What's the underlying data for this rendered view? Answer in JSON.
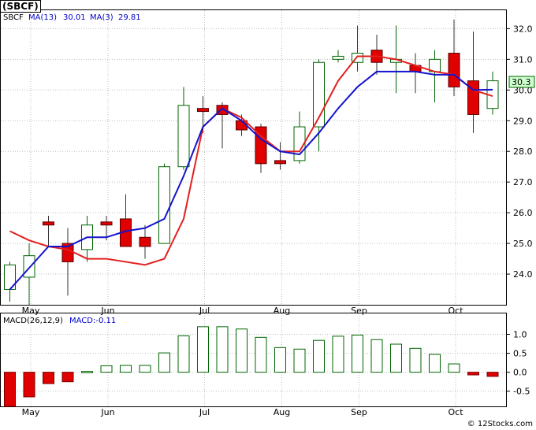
{
  "ticker_badge": "(SBCF)",
  "copyright": "© 12Stocks.com",
  "colors": {
    "up_candle_fill": "#ffffff",
    "up_candle_edge": "#006400",
    "down_candle_fill": "#e00000",
    "ma_fast": "#e32020",
    "ma_slow": "#1414cc",
    "macd_bar_up": "#006400",
    "macd_bar_down": "#e00000",
    "grid": "#bfbfbf",
    "legend_text": "#0000cc"
  },
  "chart_data": [
    {
      "type": "candlestick",
      "legend": {
        "symbol": "SBCF",
        "ma_slow_label": "MA(13)",
        "ma_slow_value": "30.01",
        "ma_fast_label": "MA(3)",
        "ma_fast_value": "29.81"
      },
      "last_price_label": "30.3",
      "ylim": [
        23,
        32.6
      ],
      "yticks": [
        "24.0",
        "25.0",
        "26.0",
        "27.0",
        "28.0",
        "29.0",
        "30.0",
        "31.0",
        "32.0"
      ],
      "xticks": [
        "May",
        "Jun",
        "Jul",
        "Aug",
        "Sep",
        "Oct"
      ],
      "grid": true,
      "candles": [
        {
          "o": 23.5,
          "h": 24.4,
          "l": 23.1,
          "c": 24.3
        },
        {
          "o": 23.9,
          "h": 25.0,
          "l": 23.0,
          "c": 24.6
        },
        {
          "o": 25.7,
          "h": 25.9,
          "l": 24.9,
          "c": 25.6
        },
        {
          "o": 25.0,
          "h": 25.5,
          "l": 23.3,
          "c": 24.4
        },
        {
          "o": 24.8,
          "h": 25.9,
          "l": 24.4,
          "c": 25.6
        },
        {
          "o": 25.7,
          "h": 25.9,
          "l": 25.1,
          "c": 25.6
        },
        {
          "o": 25.8,
          "h": 26.6,
          "l": 24.9,
          "c": 24.9
        },
        {
          "o": 25.2,
          "h": 25.6,
          "l": 24.5,
          "c": 24.9
        },
        {
          "o": 25.0,
          "h": 27.6,
          "l": 25.0,
          "c": 27.5
        },
        {
          "o": 27.5,
          "h": 30.1,
          "l": 27.4,
          "c": 29.5
        },
        {
          "o": 29.4,
          "h": 29.8,
          "l": 28.6,
          "c": 29.3
        },
        {
          "o": 29.5,
          "h": 29.6,
          "l": 28.1,
          "c": 29.2
        },
        {
          "o": 29.0,
          "h": 29.2,
          "l": 28.5,
          "c": 28.7
        },
        {
          "o": 28.8,
          "h": 28.9,
          "l": 27.3,
          "c": 27.6
        },
        {
          "o": 27.7,
          "h": 28.3,
          "l": 27.4,
          "c": 27.6
        },
        {
          "o": 27.7,
          "h": 29.3,
          "l": 27.6,
          "c": 28.8
        },
        {
          "o": 28.8,
          "h": 31.0,
          "l": 28.0,
          "c": 30.9
        },
        {
          "o": 31.0,
          "h": 31.3,
          "l": 30.9,
          "c": 31.1
        },
        {
          "o": 30.9,
          "h": 32.1,
          "l": 30.6,
          "c": 31.2
        },
        {
          "o": 31.3,
          "h": 31.8,
          "l": 30.5,
          "c": 30.9
        },
        {
          "o": 30.9,
          "h": 32.1,
          "l": 29.9,
          "c": 31.0
        },
        {
          "o": 30.8,
          "h": 31.2,
          "l": 29.9,
          "c": 30.6
        },
        {
          "o": 30.6,
          "h": 31.3,
          "l": 29.6,
          "c": 31.0
        },
        {
          "o": 31.2,
          "h": 32.3,
          "l": 29.8,
          "c": 30.1
        },
        {
          "o": 30.3,
          "h": 31.9,
          "l": 28.6,
          "c": 29.2
        },
        {
          "o": 29.4,
          "h": 30.6,
          "l": 29.2,
          "c": 30.3
        }
      ],
      "ma_fast": [
        25.4,
        25.1,
        24.9,
        24.8,
        24.5,
        24.5,
        null,
        24.3,
        24.5,
        25.8,
        28.8,
        29.4,
        29.1,
        28.5,
        28.0,
        28.0,
        29.1,
        30.3,
        31.1,
        31.1,
        31.0,
        30.8,
        30.6,
        30.5,
        30.0,
        29.8
      ],
      "ma_slow": [
        23.5,
        24.2,
        24.9,
        24.9,
        25.2,
        25.2,
        25.4,
        25.5,
        25.8,
        27.2,
        28.8,
        29.4,
        29.0,
        28.4,
        28.0,
        27.9,
        28.6,
        29.4,
        30.1,
        30.6,
        30.6,
        30.6,
        30.5,
        30.5,
        30.0,
        30.01
      ]
    },
    {
      "type": "macd",
      "legend": {
        "label": "MACD(26,12,9)",
        "value_label": "MACD:-0.11"
      },
      "ylim": [
        -0.9,
        1.55
      ],
      "yticks": [
        "1.0",
        "0.5",
        "0.0",
        "-0.5"
      ],
      "xticks": [
        "May",
        "Jun",
        "Jul",
        "Aug",
        "Sep",
        "Oct"
      ],
      "values": [
        -0.9,
        -0.65,
        -0.3,
        -0.25,
        0.02,
        0.17,
        0.18,
        0.18,
        0.51,
        0.96,
        1.2,
        1.2,
        1.14,
        0.92,
        0.65,
        0.61,
        0.84,
        0.95,
        0.98,
        0.86,
        0.74,
        0.63,
        0.47,
        0.22,
        -0.07,
        -0.11
      ]
    }
  ]
}
